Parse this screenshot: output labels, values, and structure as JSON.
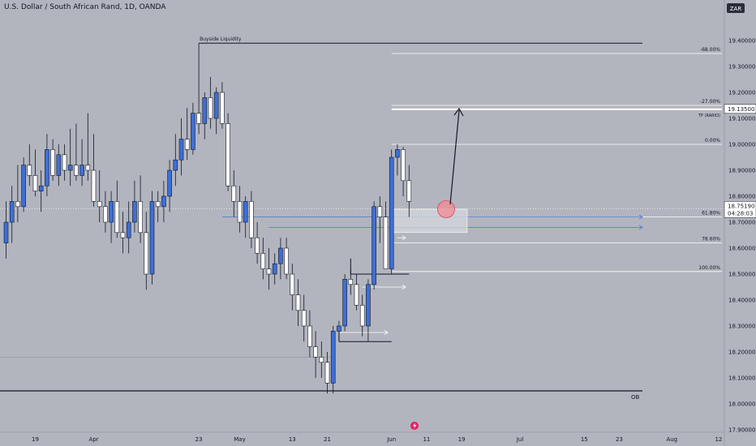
{
  "header": {
    "title": "U.S. Dollar / South African Rand, 1D, OANDA"
  },
  "currency_badge": "ZAR",
  "price_tag": {
    "price": "18.75190",
    "countdown": "04:28:03"
  },
  "tp_tag": {
    "price": "19.13500"
  },
  "chart_data": {
    "type": "candlestick",
    "symbol": "USDZAR",
    "timeframe": "1D",
    "ylim": [
      17.9,
      19.5
    ],
    "y_ticks": [
      "19.40000",
      "19.30000",
      "19.20000",
      "19.10000",
      "19.00000",
      "18.90000",
      "18.80000",
      "18.70000",
      "18.60000",
      "18.50000",
      "18.40000",
      "18.30000",
      "18.20000",
      "18.10000",
      "18.00000",
      "17.90000"
    ],
    "x_ticks": [
      {
        "i": 5,
        "label": "19"
      },
      {
        "i": 15,
        "label": "Apr"
      },
      {
        "i": 33,
        "label": "23"
      },
      {
        "i": 40,
        "label": "May"
      },
      {
        "i": 49,
        "label": "13"
      },
      {
        "i": 55,
        "label": "21"
      },
      {
        "i": 66,
        "label": "Jun"
      },
      {
        "i": 72,
        "label": "11"
      },
      {
        "i": 78,
        "label": "19"
      },
      {
        "i": 88,
        "label": "Jul"
      },
      {
        "i": 99,
        "label": "15"
      },
      {
        "i": 105,
        "label": "23"
      },
      {
        "i": 114,
        "label": "Aug"
      },
      {
        "i": 122,
        "label": "12"
      }
    ],
    "candles": [
      {
        "o": 18.62,
        "h": 18.78,
        "l": 18.56,
        "c": 18.7
      },
      {
        "o": 18.7,
        "h": 18.84,
        "l": 18.62,
        "c": 18.78
      },
      {
        "o": 18.78,
        "h": 18.92,
        "l": 18.7,
        "c": 18.76
      },
      {
        "o": 18.76,
        "h": 18.95,
        "l": 18.74,
        "c": 18.92
      },
      {
        "o": 18.92,
        "h": 19.0,
        "l": 18.84,
        "c": 18.88
      },
      {
        "o": 18.88,
        "h": 18.98,
        "l": 18.8,
        "c": 18.82
      },
      {
        "o": 18.82,
        "h": 18.9,
        "l": 18.74,
        "c": 18.84
      },
      {
        "o": 18.84,
        "h": 19.04,
        "l": 18.8,
        "c": 18.98
      },
      {
        "o": 18.98,
        "h": 19.02,
        "l": 18.86,
        "c": 18.88
      },
      {
        "o": 18.88,
        "h": 19.0,
        "l": 18.84,
        "c": 18.96
      },
      {
        "o": 18.96,
        "h": 19.0,
        "l": 18.86,
        "c": 18.9
      },
      {
        "o": 18.9,
        "h": 19.06,
        "l": 18.84,
        "c": 18.92
      },
      {
        "o": 18.92,
        "h": 19.08,
        "l": 18.86,
        "c": 18.88
      },
      {
        "o": 18.88,
        "h": 19.02,
        "l": 18.84,
        "c": 18.92
      },
      {
        "o": 18.92,
        "h": 19.12,
        "l": 18.86,
        "c": 18.9
      },
      {
        "o": 18.9,
        "h": 19.04,
        "l": 18.76,
        "c": 18.78
      },
      {
        "o": 18.78,
        "h": 18.9,
        "l": 18.7,
        "c": 18.76
      },
      {
        "o": 18.76,
        "h": 18.82,
        "l": 18.66,
        "c": 18.7
      },
      {
        "o": 18.7,
        "h": 18.82,
        "l": 18.62,
        "c": 18.78
      },
      {
        "o": 18.78,
        "h": 18.86,
        "l": 18.64,
        "c": 18.66
      },
      {
        "o": 18.66,
        "h": 18.74,
        "l": 18.58,
        "c": 18.64
      },
      {
        "o": 18.64,
        "h": 18.78,
        "l": 18.58,
        "c": 18.7
      },
      {
        "o": 18.7,
        "h": 18.86,
        "l": 18.66,
        "c": 18.78
      },
      {
        "o": 18.78,
        "h": 18.88,
        "l": 18.62,
        "c": 18.66
      },
      {
        "o": 18.66,
        "h": 18.74,
        "l": 18.44,
        "c": 18.5
      },
      {
        "o": 18.5,
        "h": 18.82,
        "l": 18.46,
        "c": 18.78
      },
      {
        "o": 18.78,
        "h": 18.82,
        "l": 18.7,
        "c": 18.76
      },
      {
        "o": 18.76,
        "h": 18.86,
        "l": 18.7,
        "c": 18.8
      },
      {
        "o": 18.8,
        "h": 18.94,
        "l": 18.74,
        "c": 18.9
      },
      {
        "o": 18.9,
        "h": 19.04,
        "l": 18.84,
        "c": 18.94
      },
      {
        "o": 18.94,
        "h": 19.1,
        "l": 18.88,
        "c": 19.02
      },
      {
        "o": 19.02,
        "h": 19.14,
        "l": 18.94,
        "c": 18.98
      },
      {
        "o": 18.98,
        "h": 19.16,
        "l": 18.96,
        "c": 19.12
      },
      {
        "o": 19.12,
        "h": 19.39,
        "l": 19.04,
        "c": 19.08
      },
      {
        "o": 19.08,
        "h": 19.2,
        "l": 19.02,
        "c": 19.18
      },
      {
        "o": 19.18,
        "h": 19.26,
        "l": 19.06,
        "c": 19.1
      },
      {
        "o": 19.1,
        "h": 19.22,
        "l": 19.04,
        "c": 19.2
      },
      {
        "o": 19.2,
        "h": 19.24,
        "l": 19.06,
        "c": 19.08
      },
      {
        "o": 19.08,
        "h": 19.12,
        "l": 18.82,
        "c": 18.84
      },
      {
        "o": 18.84,
        "h": 18.9,
        "l": 18.72,
        "c": 18.78
      },
      {
        "o": 18.78,
        "h": 18.84,
        "l": 18.66,
        "c": 18.7
      },
      {
        "o": 18.7,
        "h": 18.8,
        "l": 18.64,
        "c": 18.78
      },
      {
        "o": 18.78,
        "h": 18.82,
        "l": 18.6,
        "c": 18.64
      },
      {
        "o": 18.64,
        "h": 18.7,
        "l": 18.54,
        "c": 18.58
      },
      {
        "o": 18.58,
        "h": 18.64,
        "l": 18.48,
        "c": 18.52
      },
      {
        "o": 18.52,
        "h": 18.6,
        "l": 18.44,
        "c": 18.5
      },
      {
        "o": 18.5,
        "h": 18.58,
        "l": 18.46,
        "c": 18.54
      },
      {
        "o": 18.54,
        "h": 18.64,
        "l": 18.48,
        "c": 18.6
      },
      {
        "o": 18.6,
        "h": 18.64,
        "l": 18.48,
        "c": 18.5
      },
      {
        "o": 18.5,
        "h": 18.54,
        "l": 18.36,
        "c": 18.42
      },
      {
        "o": 18.42,
        "h": 18.48,
        "l": 18.3,
        "c": 18.36
      },
      {
        "o": 18.36,
        "h": 18.42,
        "l": 18.24,
        "c": 18.3
      },
      {
        "o": 18.3,
        "h": 18.36,
        "l": 18.18,
        "c": 18.22
      },
      {
        "o": 18.22,
        "h": 18.28,
        "l": 18.1,
        "c": 18.18
      },
      {
        "o": 18.18,
        "h": 18.24,
        "l": 18.1,
        "c": 18.16
      },
      {
        "o": 18.16,
        "h": 18.2,
        "l": 18.04,
        "c": 18.08
      },
      {
        "o": 18.08,
        "h": 18.3,
        "l": 18.04,
        "c": 18.28
      },
      {
        "o": 18.28,
        "h": 18.32,
        "l": 18.24,
        "c": 18.3
      },
      {
        "o": 18.3,
        "h": 18.5,
        "l": 18.28,
        "c": 18.48
      },
      {
        "o": 18.48,
        "h": 18.52,
        "l": 18.42,
        "c": 18.46
      },
      {
        "o": 18.46,
        "h": 18.5,
        "l": 18.36,
        "c": 18.38
      },
      {
        "o": 18.38,
        "h": 18.42,
        "l": 18.26,
        "c": 18.3
      },
      {
        "o": 18.3,
        "h": 18.48,
        "l": 18.24,
        "c": 18.46
      },
      {
        "o": 18.46,
        "h": 18.78,
        "l": 18.44,
        "c": 18.76
      },
      {
        "o": 18.76,
        "h": 18.8,
        "l": 18.62,
        "c": 18.72
      },
      {
        "o": 18.72,
        "h": 18.78,
        "l": 18.52,
        "c": 18.52
      },
      {
        "o": 18.52,
        "h": 18.98,
        "l": 18.5,
        "c": 18.95
      },
      {
        "o": 18.95,
        "h": 19.0,
        "l": 18.88,
        "c": 18.98
      },
      {
        "o": 18.98,
        "h": 18.99,
        "l": 18.8,
        "c": 18.86
      },
      {
        "o": 18.86,
        "h": 18.92,
        "l": 18.72,
        "c": 18.78
      }
    ],
    "levels": [
      {
        "label": "Buyside Liquidity",
        "price": 19.39
      },
      {
        "label": "TP (RARIO)",
        "price": 19.135
      },
      {
        "label": "OB",
        "price": 18.05
      }
    ],
    "fib_levels": [
      {
        "label": "-68.00%",
        "price": 19.35
      },
      {
        "label": "-27.00%",
        "price": 19.15
      },
      {
        "label": "0.00%",
        "price": 19.0
      },
      {
        "label": "61.80%",
        "price": 18.72
      },
      {
        "label": "78.60%",
        "price": 18.62
      },
      {
        "label": "100.00%",
        "price": 18.51
      }
    ],
    "colors": {
      "bull": "#3d6fd8",
      "bear": "#ffffff",
      "wick": "#131722",
      "background": "#b2b5be"
    }
  }
}
